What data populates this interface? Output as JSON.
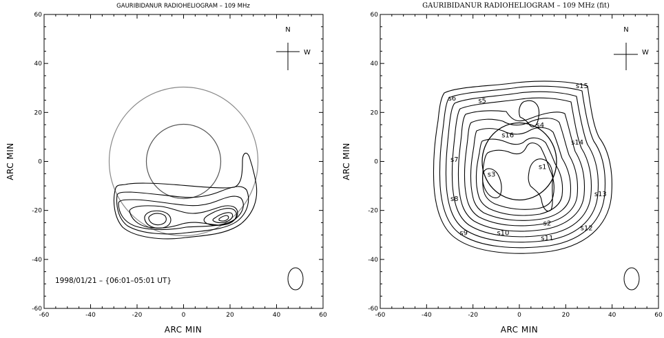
{
  "chart_data": [
    {
      "type": "contour",
      "title": "GAURIBIDANUR RADIOHELIOGRAM – 109 MHz",
      "xlabel": "ARC MIN",
      "ylabel": "ARC MIN",
      "xlim": [
        -60,
        60
      ],
      "ylim": [
        -60,
        60
      ],
      "xticks": [
        -60,
        -40,
        -20,
        0,
        20,
        40,
        60
      ],
      "yticks": [
        -60,
        -40,
        -20,
        0,
        20,
        40,
        60
      ],
      "compass": {
        "north": "N",
        "west": "W"
      },
      "annotation": "1998/01/21 – {06:01–05:01 UT}",
      "disk_circles_arcmin": [
        32,
        16
      ],
      "beam": {
        "x": 48,
        "y": -48,
        "rx": 3.2,
        "ry": 4.7
      },
      "contour_levels": 7,
      "peaks": [
        {
          "x": -10,
          "y": -25
        },
        {
          "x": 21,
          "y": -25
        }
      ]
    },
    {
      "type": "contour",
      "title": "GAURIBIDANUR RADIOHELIOGRAM – 109 MHz (fit)",
      "xlabel": "ARC MIN",
      "ylabel": "ARC MIN",
      "xlim": [
        -60,
        60
      ],
      "ylim": [
        -60,
        60
      ],
      "xticks": [
        -60,
        -40,
        -20,
        0,
        20,
        40,
        60
      ],
      "yticks": [
        -60,
        -40,
        -20,
        0,
        20,
        40,
        60
      ],
      "compass": {
        "north": "N",
        "west": "W"
      },
      "disk_circles_arcmin": [
        16
      ],
      "beam": {
        "x": 48,
        "y": -48,
        "rx": 3.2,
        "ry": 4.7
      },
      "contour_levels": 10,
      "sources": [
        {
          "label": "s1",
          "x": 10,
          "y": -2
        },
        {
          "label": "s2",
          "x": 12,
          "y": -25
        },
        {
          "label": "s3",
          "x": -12,
          "y": -5
        },
        {
          "label": "s4",
          "x": 9,
          "y": 15
        },
        {
          "label": "s5",
          "x": -16,
          "y": 25
        },
        {
          "label": "s6",
          "x": -29,
          "y": 26
        },
        {
          "label": "s7",
          "x": -28,
          "y": 1
        },
        {
          "label": "s8",
          "x": -28,
          "y": -15
        },
        {
          "label": "s9",
          "x": -24,
          "y": -29
        },
        {
          "label": "s10",
          "x": -7,
          "y": -29
        },
        {
          "label": "s11",
          "x": 12,
          "y": -31
        },
        {
          "label": "s12",
          "x": 29,
          "y": -27
        },
        {
          "label": "s13",
          "x": 35,
          "y": -13
        },
        {
          "label": "s14",
          "x": 25,
          "y": 8
        },
        {
          "label": "s15",
          "x": 27,
          "y": 31
        },
        {
          "label": "s16",
          "x": -5,
          "y": 11
        }
      ]
    }
  ]
}
